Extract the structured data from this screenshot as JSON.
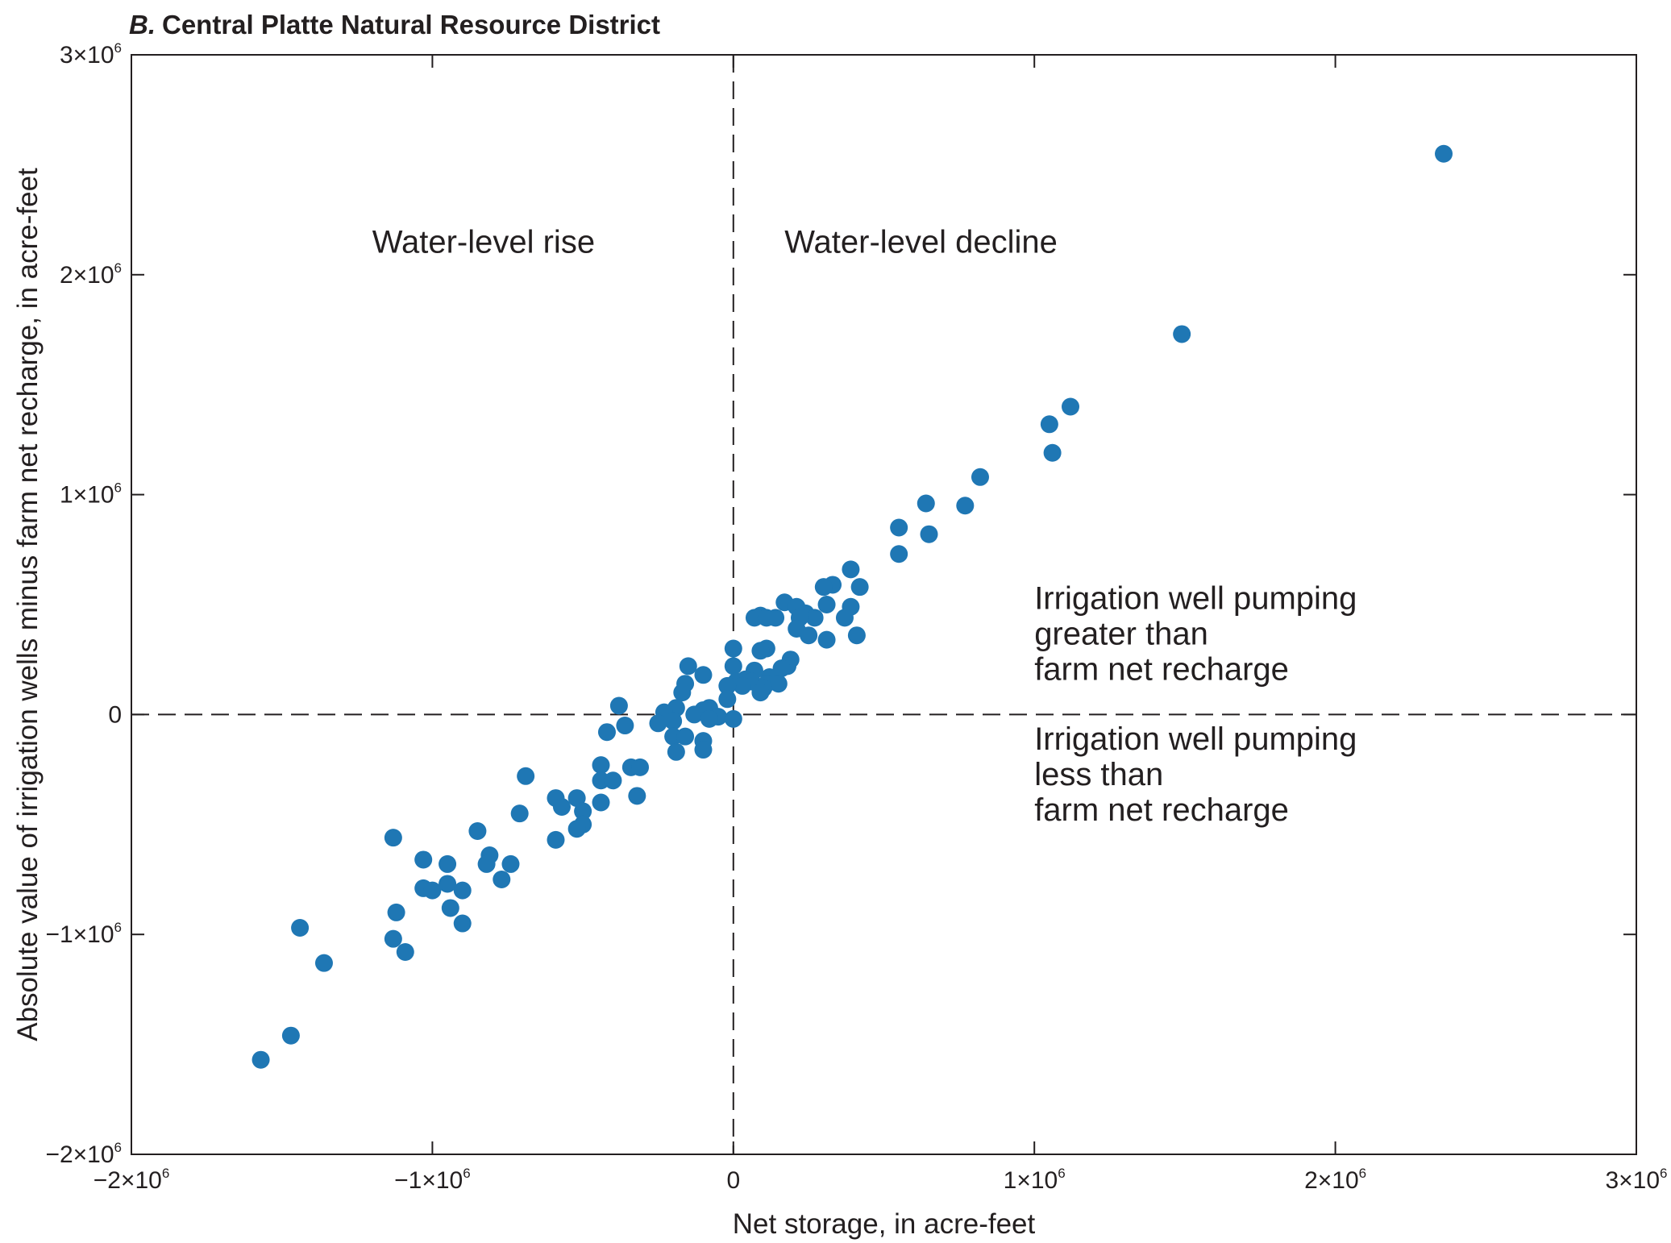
{
  "chart_data": {
    "type": "scatter",
    "title_letter": "B.",
    "title": "Central Platte Natural Resource District",
    "xlabel": "Net storage, in acre-feet",
    "ylabel": "Absolute value of irrigation wells minus farm net recharge, in acre-feet",
    "xlim": [
      -2000000,
      3000000
    ],
    "ylim": [
      -2000000,
      3000000
    ],
    "grid": false,
    "marker_color": "#1f77b4",
    "reference_lines": {
      "x": 0,
      "y": 0,
      "style": "dashed"
    },
    "x_ticks": [
      {
        "value": -2000000,
        "base": "−2×10",
        "exp": "6"
      },
      {
        "value": -1000000,
        "base": "−1×10",
        "exp": "6"
      },
      {
        "value": 0,
        "base": "0",
        "exp": ""
      },
      {
        "value": 1000000,
        "base": "1×10",
        "exp": "6"
      },
      {
        "value": 2000000,
        "base": "2×10",
        "exp": "6"
      },
      {
        "value": 3000000,
        "base": "3×10",
        "exp": "6"
      }
    ],
    "y_ticks": [
      {
        "value": -2000000,
        "base": "−2×10",
        "exp": "6"
      },
      {
        "value": -1000000,
        "base": "−1×10",
        "exp": "6"
      },
      {
        "value": 0,
        "base": "0",
        "exp": ""
      },
      {
        "value": 1000000,
        "base": "1×10",
        "exp": "6"
      },
      {
        "value": 2000000,
        "base": "2×10",
        "exp": "6"
      },
      {
        "value": 3000000,
        "base": "3×10",
        "exp": "6"
      }
    ],
    "annotations": [
      {
        "lines": [
          "Water-level rise"
        ],
        "x": -1200000,
        "y": 2100000,
        "anchor": "start"
      },
      {
        "lines": [
          "Water-level decline"
        ],
        "x": 170000,
        "y": 2100000,
        "anchor": "start"
      },
      {
        "lines": [
          "Irrigation well pumping",
          "greater than",
          "farm net recharge"
        ],
        "x": 1000000,
        "y": 480000,
        "anchor": "start"
      },
      {
        "lines": [
          "Irrigation well pumping",
          "less than",
          "farm net recharge"
        ],
        "x": 1000000,
        "y": -160000,
        "anchor": "start"
      }
    ],
    "points": [
      [
        2360000,
        2550000
      ],
      [
        1490000,
        1730000
      ],
      [
        1120000,
        1400000
      ],
      [
        1050000,
        1320000
      ],
      [
        1060000,
        1190000
      ],
      [
        820000,
        1080000
      ],
      [
        640000,
        960000
      ],
      [
        770000,
        950000
      ],
      [
        550000,
        850000
      ],
      [
        650000,
        820000
      ],
      [
        550000,
        730000
      ],
      [
        390000,
        660000
      ],
      [
        420000,
        580000
      ],
      [
        330000,
        590000
      ],
      [
        300000,
        580000
      ],
      [
        170000,
        510000
      ],
      [
        310000,
        500000
      ],
      [
        210000,
        490000
      ],
      [
        390000,
        490000
      ],
      [
        240000,
        460000
      ],
      [
        270000,
        440000
      ],
      [
        90000,
        450000
      ],
      [
        70000,
        440000
      ],
      [
        110000,
        440000
      ],
      [
        140000,
        440000
      ],
      [
        220000,
        440000
      ],
      [
        370000,
        440000
      ],
      [
        210000,
        390000
      ],
      [
        250000,
        360000
      ],
      [
        410000,
        360000
      ],
      [
        310000,
        340000
      ],
      [
        0,
        300000
      ],
      [
        110000,
        300000
      ],
      [
        90000,
        290000
      ],
      [
        190000,
        250000
      ],
      [
        -150000,
        220000
      ],
      [
        180000,
        220000
      ],
      [
        0,
        220000
      ],
      [
        160000,
        210000
      ],
      [
        70000,
        200000
      ],
      [
        -100000,
        180000
      ],
      [
        120000,
        170000
      ],
      [
        40000,
        160000
      ],
      [
        10000,
        150000
      ],
      [
        60000,
        150000
      ],
      [
        110000,
        140000
      ],
      [
        150000,
        140000
      ],
      [
        -160000,
        140000
      ],
      [
        30000,
        130000
      ],
      [
        -20000,
        130000
      ],
      [
        100000,
        120000
      ],
      [
        90000,
        100000
      ],
      [
        -170000,
        100000
      ],
      [
        -20000,
        70000
      ],
      [
        -380000,
        40000
      ],
      [
        -190000,
        30000
      ],
      [
        -80000,
        30000
      ],
      [
        -100000,
        20000
      ],
      [
        -230000,
        10000
      ],
      [
        -130000,
        0
      ],
      [
        -50000,
        -10000
      ],
      [
        -80000,
        -20000
      ],
      [
        0,
        -20000
      ],
      [
        -200000,
        -30000
      ],
      [
        -250000,
        -40000
      ],
      [
        -360000,
        -50000
      ],
      [
        -420000,
        -80000
      ],
      [
        -200000,
        -100000
      ],
      [
        -160000,
        -100000
      ],
      [
        -100000,
        -120000
      ],
      [
        -100000,
        -160000
      ],
      [
        -190000,
        -170000
      ],
      [
        -440000,
        -230000
      ],
      [
        -340000,
        -240000
      ],
      [
        -310000,
        -240000
      ],
      [
        -690000,
        -280000
      ],
      [
        -440000,
        -300000
      ],
      [
        -400000,
        -300000
      ],
      [
        -320000,
        -370000
      ],
      [
        -590000,
        -380000
      ],
      [
        -520000,
        -380000
      ],
      [
        -440000,
        -400000
      ],
      [
        -570000,
        -420000
      ],
      [
        -500000,
        -440000
      ],
      [
        -710000,
        -450000
      ],
      [
        -500000,
        -500000
      ],
      [
        -520000,
        -520000
      ],
      [
        -850000,
        -530000
      ],
      [
        -590000,
        -570000
      ],
      [
        -1130000,
        -560000
      ],
      [
        -810000,
        -640000
      ],
      [
        -1030000,
        -660000
      ],
      [
        -950000,
        -680000
      ],
      [
        -820000,
        -680000
      ],
      [
        -740000,
        -680000
      ],
      [
        -770000,
        -750000
      ],
      [
        -950000,
        -770000
      ],
      [
        -1030000,
        -790000
      ],
      [
        -1000000,
        -800000
      ],
      [
        -900000,
        -800000
      ],
      [
        -940000,
        -880000
      ],
      [
        -1120000,
        -900000
      ],
      [
        -900000,
        -950000
      ],
      [
        -1440000,
        -970000
      ],
      [
        -1130000,
        -1020000
      ],
      [
        -1090000,
        -1080000
      ],
      [
        -1360000,
        -1130000
      ],
      [
        -1470000,
        -1460000
      ],
      [
        -1570000,
        -1570000
      ]
    ]
  }
}
